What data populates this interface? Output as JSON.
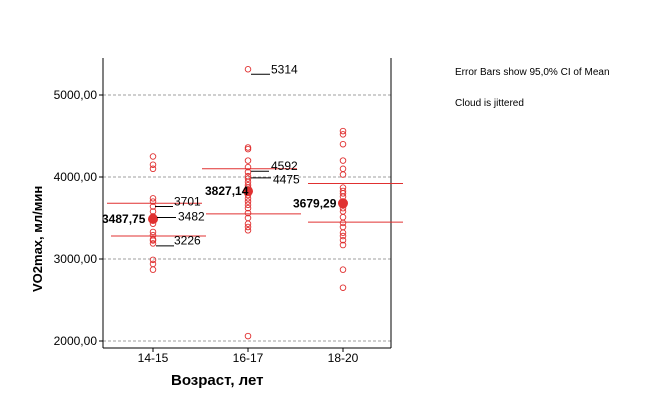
{
  "notes": {
    "error_bars": "Error Bars show 95,0% CI of Mean",
    "jitter": "Cloud is jittered"
  },
  "colors": {
    "points": "#e03030",
    "axis": "#000000",
    "grid": "#808080"
  },
  "chart_data": {
    "type": "scatter",
    "xlabel": "Возраст, лет",
    "ylabel": "VO2max, мл/мин",
    "categories": [
      "14-15",
      "16-17",
      "18-20"
    ],
    "ylim": [
      1950,
      5450
    ],
    "yticks": [
      2000,
      3000,
      4000,
      5000
    ],
    "ytick_labels": [
      "2000,00",
      "3000,00",
      "4000,00",
      "5000,00"
    ],
    "grid": "horizontal dashed",
    "groups": [
      {
        "category": "14-15",
        "points": [
          4250,
          4150,
          4100,
          3740,
          3700,
          3640,
          3580,
          3520,
          3482,
          3430,
          3330,
          3290,
          3240,
          3226,
          3190,
          2990,
          2940,
          2870
        ],
        "mean": 3487.75,
        "mean_label": "3487,75",
        "ci": [
          3280,
          3680
        ],
        "labels": [
          "3701",
          "3482",
          "3226"
        ]
      },
      {
        "category": "16-17",
        "points": [
          5314,
          4360,
          4340,
          4200,
          4120,
          4060,
          4010,
          3980,
          3940,
          3900,
          3870,
          3830,
          3780,
          3740,
          3700,
          3660,
          3620,
          3560,
          3500,
          3430,
          3390,
          3350,
          2060
        ],
        "mean": 3827.14,
        "mean_label": "3827,14",
        "ci": [
          3550,
          4100
        ],
        "labels": [
          "5314",
          "4592",
          "4475"
        ]
      },
      {
        "category": "18-20",
        "points": [
          4560,
          4520,
          4400,
          4200,
          4100,
          4030,
          3870,
          3830,
          3800,
          3760,
          3700,
          3620,
          3580,
          3510,
          3440,
          3390,
          3320,
          3280,
          3230,
          3170,
          2870,
          2650
        ],
        "mean": 3679.29,
        "mean_label": "3679,29",
        "ci": [
          3450,
          3920
        ],
        "labels": []
      }
    ]
  }
}
